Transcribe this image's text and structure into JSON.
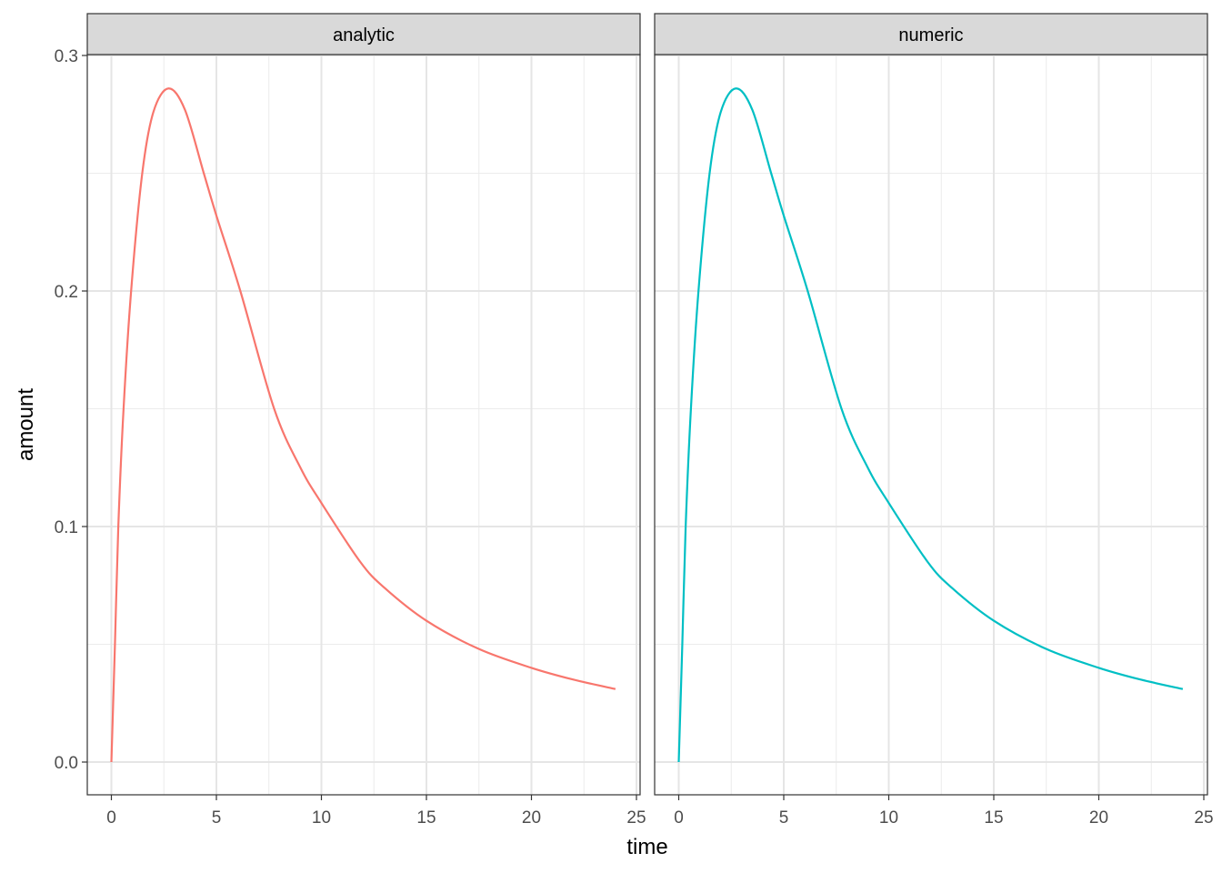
{
  "chart_data": {
    "type": "line",
    "xlabel": "time",
    "ylabel": "amount",
    "xlim": [
      -1.2,
      25.1
    ],
    "ylim": [
      -0.014,
      0.301
    ],
    "x_ticks": [
      "0",
      "5",
      "10",
      "15",
      "20",
      "25"
    ],
    "y_ticks": [
      "0.0",
      "0.1",
      "0.2",
      "0.3"
    ],
    "grid": true,
    "legend": "none",
    "panels": [
      {
        "label": "analytic",
        "color": "#F8766D"
      },
      {
        "label": "numeric",
        "color": "#00BFC4"
      }
    ],
    "series": [
      {
        "panel": "analytic",
        "x": [
          0,
          0.17,
          0.33,
          0.58,
          0.94,
          1.47,
          2,
          2.72,
          3.5,
          4.4,
          5,
          6.14,
          7.75,
          9,
          10,
          11.85,
          13,
          15,
          17.5,
          20,
          22,
          24
        ],
        "y": [
          0,
          0.05,
          0.1,
          0.15,
          0.2,
          0.25,
          0.276,
          0.286,
          0.277,
          0.25,
          0.232,
          0.2,
          0.15,
          0.125,
          0.11,
          0.085,
          0.074,
          0.06,
          0.048,
          0.04,
          0.035,
          0.031
        ]
      },
      {
        "panel": "numeric",
        "x": [
          0,
          0.17,
          0.33,
          0.58,
          0.94,
          1.47,
          2,
          2.72,
          3.5,
          4.4,
          5,
          6.14,
          7.75,
          9,
          10,
          11.85,
          13,
          15,
          17.5,
          20,
          22,
          24
        ],
        "y": [
          0,
          0.05,
          0.1,
          0.15,
          0.2,
          0.25,
          0.276,
          0.286,
          0.277,
          0.25,
          0.232,
          0.2,
          0.15,
          0.125,
          0.11,
          0.085,
          0.074,
          0.06,
          0.048,
          0.04,
          0.035,
          0.031
        ]
      }
    ]
  }
}
